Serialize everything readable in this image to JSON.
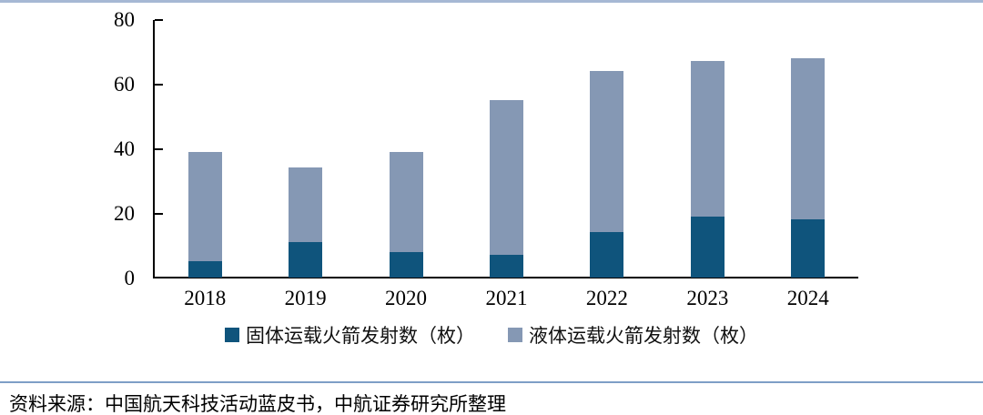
{
  "page": {
    "background": "#ffffff"
  },
  "dividers": {
    "top_color": "#a6b8d4",
    "bottom_color": "#7e9ec6"
  },
  "source_note": "资料来源：中国航天科技活动蓝皮书，中航证券研究所整理",
  "chart_data": {
    "type": "bar",
    "stacked": true,
    "title": "",
    "xlabel": "",
    "ylabel": "",
    "categories": [
      "2018",
      "2019",
      "2020",
      "2021",
      "2022",
      "2023",
      "2024"
    ],
    "series": [
      {
        "name": "固体运载火箭发射数（枚）",
        "values": [
          5,
          11,
          8,
          7,
          14,
          19,
          18
        ],
        "color": "#0f547c"
      },
      {
        "name": "液体运载火箭发射数（枚）",
        "values": [
          34,
          23,
          31,
          48,
          50,
          48,
          50
        ],
        "color": "#8598b4"
      }
    ],
    "totals": [
      39,
      34,
      39,
      55,
      64,
      67,
      68
    ],
    "ylim": [
      0,
      80
    ],
    "yticks": [
      0,
      20,
      40,
      60,
      80
    ],
    "grid": false,
    "axis_color": "#000000",
    "tick_direction": "in",
    "legend_position": "bottom",
    "legend_marker": "square"
  }
}
